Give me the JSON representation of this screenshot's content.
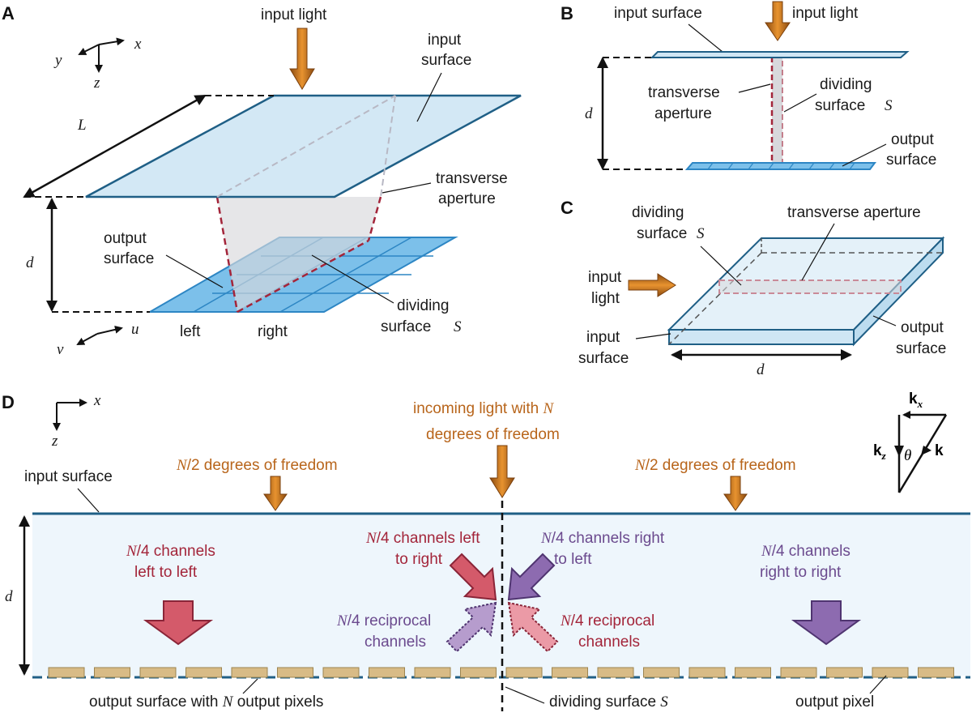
{
  "colors": {
    "surface_fill": "#cfe6f4",
    "surface_edge": "#1f5f86",
    "pixel_fill": "#5aaee0",
    "pixel_edge": "#2d86c4",
    "aperture": "#a3253a",
    "orange_arrow": "#c7711d",
    "red_channel": "#d45a6a",
    "purple_channel": "#8d6bb0",
    "output_pixel": "#d8bb86",
    "orange_text": "#b8651b",
    "red_text": "#a3253a",
    "purple_text": "#6b4a8e"
  },
  "panel_a": {
    "letter": "A",
    "axes": {
      "x": "x",
      "y": "y",
      "z": "z"
    },
    "output_axes": {
      "u": "u",
      "v": "v"
    },
    "input_light": "input light",
    "input_surface": [
      "input",
      "surface"
    ],
    "length_label": "L",
    "depth_label": "d",
    "transverse_aperture": [
      "transverse",
      "aperture"
    ],
    "output_surface": [
      "output",
      "surface"
    ],
    "dividing_surface": [
      "dividing",
      "surface"
    ],
    "surface_symbol": "S",
    "left": "left",
    "right": "right"
  },
  "panel_b": {
    "letter": "B",
    "input_surface": "input surface",
    "input_light": "input light",
    "depth_label": "d",
    "transverse_aperture": [
      "transverse",
      "aperture"
    ],
    "dividing_surface": [
      "dividing",
      "surface"
    ],
    "surface_symbol": "S",
    "output_surface": [
      "output",
      "surface"
    ]
  },
  "panel_c": {
    "letter": "C",
    "dividing_surface": [
      "dividing",
      "surface"
    ],
    "surface_symbol": "S",
    "transverse_aperture": "transverse aperture",
    "input_light": [
      "input",
      "light"
    ],
    "input_surface": [
      "input",
      "surface"
    ],
    "output_surface": [
      "output",
      "surface"
    ],
    "depth_label": "d"
  },
  "panel_d": {
    "letter": "D",
    "axes": {
      "x": "x",
      "z": "z"
    },
    "incoming_symbol": "N",
    "incoming_text_1": "incoming light with ",
    "incoming_text_2": "degrees of freedom",
    "half_symbol": "N",
    "half_text": "/2 degrees of freedom",
    "input_surface": "input surface",
    "depth_label": "d",
    "k_x": "k",
    "k_x_sub": "x",
    "k_z": "k",
    "k_z_sub": "z",
    "k": "k",
    "theta": "θ",
    "quarter_symbol": "N",
    "ll": [
      "/4 channels",
      "left to left"
    ],
    "lr": [
      "/4 channels left",
      "to right"
    ],
    "rl": [
      "/4 channels right",
      "to left"
    ],
    "rr": [
      "/4 channels",
      "right to right"
    ],
    "recip_purple": [
      "/4 reciprocal",
      "channels"
    ],
    "recip_red": [
      "/4 reciprocal",
      "channels"
    ],
    "output_surface_1": "output surface with ",
    "output_surface_2": " output pixels",
    "output_symbol": "N",
    "dividing_surface": "dividing surface ",
    "dividing_symbol": "S",
    "output_pixel": "output pixel"
  }
}
